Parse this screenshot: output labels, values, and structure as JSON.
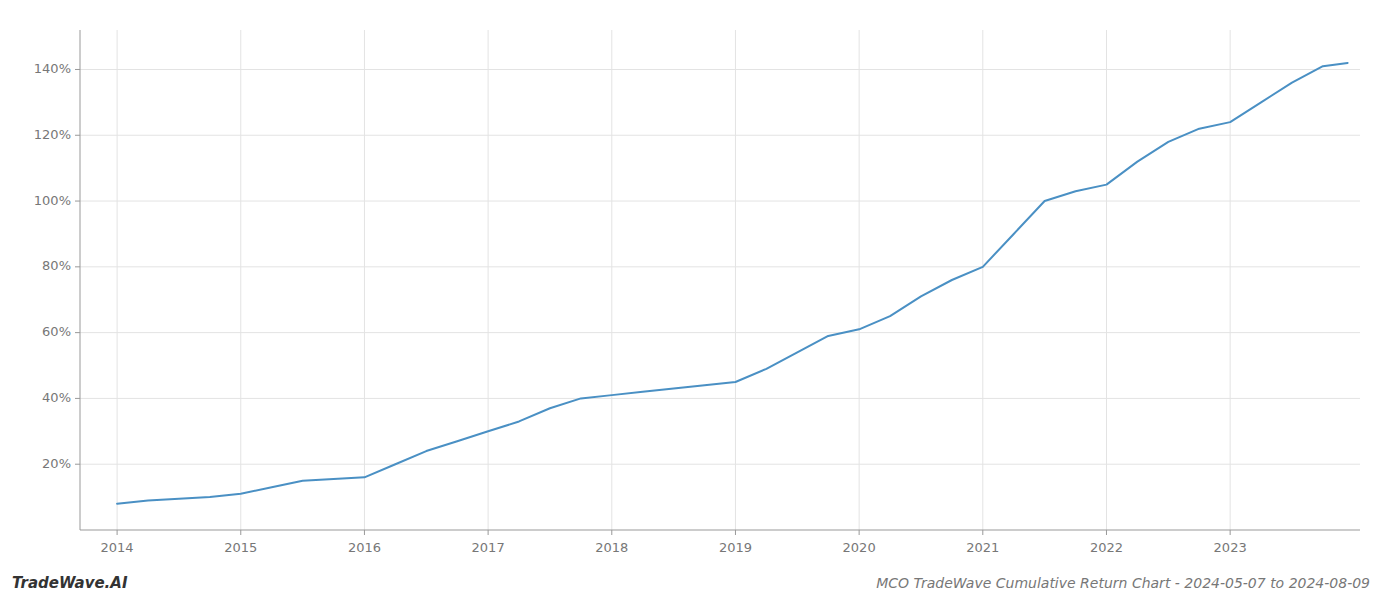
{
  "chart_data": {
    "type": "line",
    "title": "MCO TradeWave Cumulative Return Chart - 2024-05-07 to 2024-08-09",
    "annotations": [
      "TradeWave.AI"
    ],
    "color": "#4a90c4",
    "grid": true,
    "x": [
      2014.0,
      2014.25,
      2014.5,
      2014.75,
      2015.0,
      2015.25,
      2015.5,
      2015.75,
      2016.0,
      2016.25,
      2016.5,
      2016.75,
      2017.0,
      2017.25,
      2017.5,
      2017.75,
      2018.0,
      2018.25,
      2018.5,
      2018.75,
      2019.0,
      2019.25,
      2019.5,
      2019.75,
      2020.0,
      2020.25,
      2020.5,
      2020.75,
      2021.0,
      2021.25,
      2021.5,
      2021.75,
      2022.0,
      2022.25,
      2022.5,
      2022.75,
      2023.0,
      2023.25,
      2023.5,
      2023.75,
      2023.95
    ],
    "values": [
      8,
      9,
      9.5,
      10,
      11,
      13,
      15,
      15.5,
      16,
      20,
      24,
      27,
      30,
      33,
      37,
      40,
      41,
      42,
      43,
      44,
      45,
      49,
      54,
      59,
      61,
      65,
      71,
      76,
      80,
      90,
      100,
      103,
      105,
      112,
      118,
      122,
      124,
      130,
      136,
      141,
      142
    ],
    "xlim": [
      2013.7,
      2024.05
    ],
    "xticks": [
      2014,
      2015,
      2016,
      2017,
      2018,
      2019,
      2020,
      2021,
      2022,
      2023
    ],
    "ylim": [
      0,
      152
    ],
    "yticks": [
      {
        "value": 20,
        "label": "20%"
      },
      {
        "value": 40,
        "label": "40%"
      },
      {
        "value": 60,
        "label": "60%"
      },
      {
        "value": 80,
        "label": "80%"
      },
      {
        "value": 100,
        "label": "100%"
      },
      {
        "value": 120,
        "label": "120%"
      },
      {
        "value": 140,
        "label": "140%"
      }
    ]
  }
}
